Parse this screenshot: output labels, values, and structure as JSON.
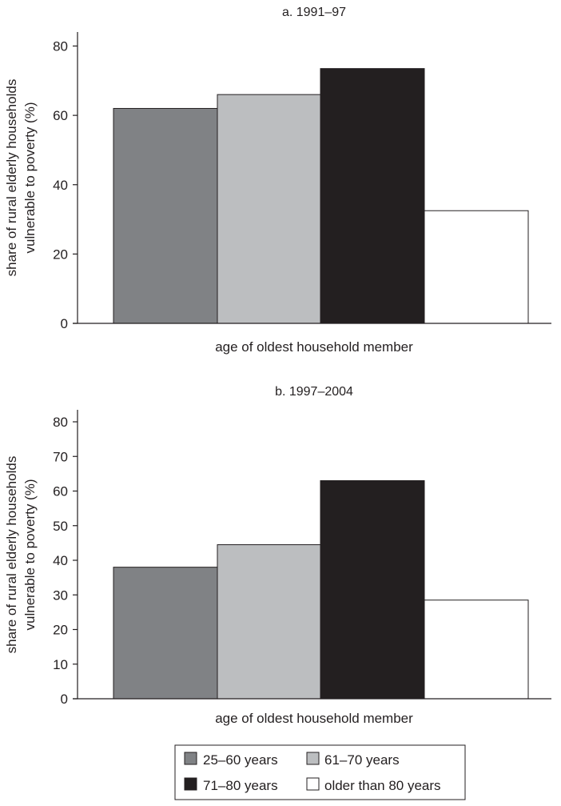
{
  "chart_data": [
    {
      "type": "bar",
      "title": "a. 1991–97",
      "xlabel": "age of oldest household member",
      "ylabel_lines": [
        "share of rural elderly households",
        "vulnerable to poverty (%)"
      ],
      "ylim": [
        0,
        80
      ],
      "yticks": [
        0,
        20,
        40,
        60,
        80
      ],
      "categories": [
        "25–60 years",
        "61–70 years",
        "71–80 years",
        "older than 80 years"
      ],
      "values": [
        62,
        66,
        73.5,
        32.5
      ]
    },
    {
      "type": "bar",
      "title": "b. 1997–2004",
      "xlabel": "age of oldest household member",
      "ylabel_lines": [
        "share of rural elderly households",
        "vulnerable to poverty (%)"
      ],
      "ylim": [
        0,
        80
      ],
      "yticks": [
        0,
        10,
        20,
        30,
        40,
        50,
        60,
        70,
        80
      ],
      "categories": [
        "25–60 years",
        "61–70 years",
        "71–80 years",
        "older than 80 years"
      ],
      "values": [
        38,
        44.5,
        63,
        28.5
      ]
    }
  ],
  "legend": {
    "placement": "bottom-center",
    "items": [
      {
        "label": "25–60 years",
        "color": "#808285"
      },
      {
        "label": "61–70 years",
        "color": "#bcbec0"
      },
      {
        "label": "71–80 years",
        "color": "#231f20"
      },
      {
        "label": "older than 80 years",
        "color": "#ffffff"
      }
    ]
  },
  "colors": {
    "axis": "#231f20",
    "bar_stroke": "#231f20",
    "text": "#231f20"
  }
}
